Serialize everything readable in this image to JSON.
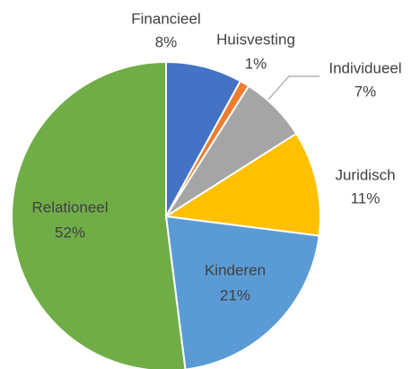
{
  "chart_data": {
    "type": "pie",
    "categories": [
      "Financieel",
      "Huisvesting",
      "Individueel",
      "Juridisch",
      "Kinderen",
      "Relationeel"
    ],
    "values": [
      8,
      1,
      7,
      11,
      21,
      52
    ],
    "value_labels": [
      "8%",
      "1%",
      "7%",
      "11%",
      "21%",
      "52%"
    ],
    "colors": [
      "#4472c4",
      "#ed7d31",
      "#a5a5a5",
      "#ffc000",
      "#5b9bd5",
      "#70ad47"
    ]
  }
}
